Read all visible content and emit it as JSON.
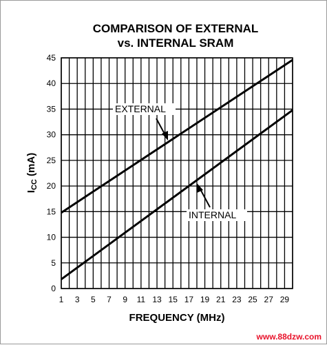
{
  "chart_data": {
    "type": "line",
    "title_lines": [
      "COMPARISON OF EXTERNAL",
      "vs. INTERNAL SRAM"
    ],
    "xlabel": "FREQUENCY (MHz)",
    "ylabel_main": "I",
    "ylabel_sub": "CC",
    "ylabel_unit": " (mA)",
    "xlim": [
      1,
      30
    ],
    "ylim": [
      0,
      45
    ],
    "x_ticks": [
      1,
      3,
      5,
      7,
      9,
      11,
      13,
      15,
      17,
      19,
      21,
      23,
      25,
      27,
      29
    ],
    "y_ticks": [
      0,
      5,
      10,
      15,
      20,
      25,
      30,
      35,
      40,
      45
    ],
    "grid": true,
    "series": [
      {
        "name": "EXTERNAL",
        "x": [
          1,
          30
        ],
        "y": [
          14.8,
          44.6
        ]
      },
      {
        "name": "INTERNAL",
        "x": [
          1,
          30
        ],
        "y": [
          1.8,
          34.8
        ]
      }
    ],
    "annotations": [
      {
        "text": "EXTERNAL",
        "points_to": [
          15,
          29.2
        ]
      },
      {
        "text": "INTERNAL",
        "points_to": [
          17,
          20.5
        ]
      }
    ]
  },
  "watermark": "www.88dzw.com",
  "colors": {
    "line": "#000000",
    "grid": "#000000",
    "watermark": "#e8122a"
  }
}
